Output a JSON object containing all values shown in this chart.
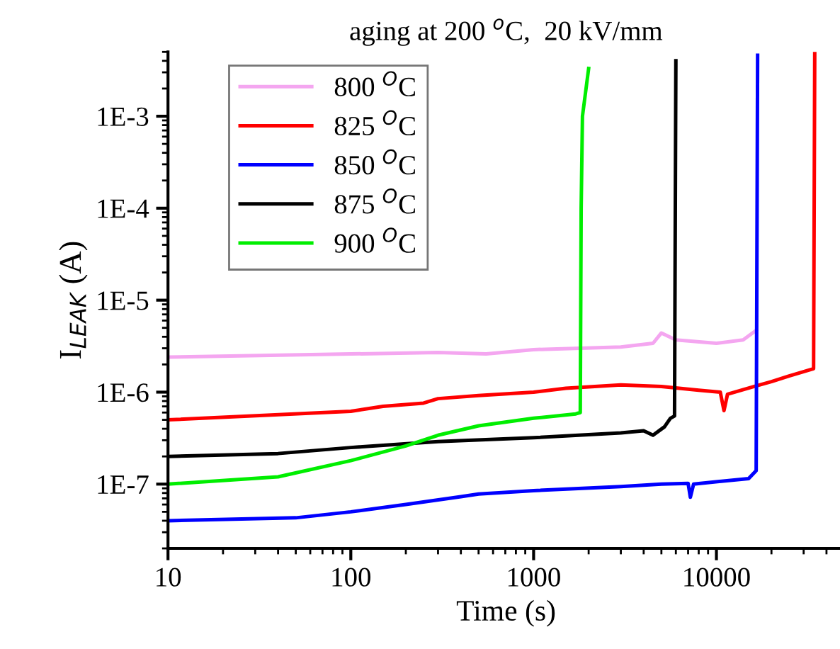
{
  "chart_data": {
    "type": "line",
    "title": "aging at 200 $^{o}$C,  20 kV/mm",
    "xlabel": "Time (s)",
    "ylabel": "I$_{LEAK}$ (A)",
    "log": "xy",
    "xlim": [
      10,
      50000
    ],
    "ylim": [
      2e-08,
      0.005
    ],
    "xticks": [
      10,
      100,
      1000,
      10000
    ],
    "yticks": [
      {
        "value": 1e-07,
        "label": "1E-7"
      },
      {
        "value": 1e-06,
        "label": "1E-6"
      },
      {
        "value": 1e-05,
        "label": "1E-5"
      },
      {
        "value": 0.0001,
        "label": "1E-4"
      },
      {
        "value": 0.001,
        "label": "1E-3"
      }
    ],
    "legend": "top left",
    "grid": false,
    "marker": "none",
    "line_style": "solid",
    "series": [
      {
        "name": "800 $^{O}$C",
        "color": "#f4a6f0",
        "x": [
          10,
          100,
          300,
          550,
          1000,
          3000,
          4500,
          5000,
          6000,
          10000,
          14000,
          16500
        ],
        "values": [
          2.4e-06,
          2.6e-06,
          2.7e-06,
          2.6e-06,
          2.9e-06,
          3.1e-06,
          3.4e-06,
          4.4e-06,
          3.7e-06,
          3.4e-06,
          3.7e-06,
          4.7e-06
        ]
      },
      {
        "name": "825 $^{O}$C",
        "color": "#ff0000",
        "x": [
          10,
          100,
          150,
          250,
          300,
          500,
          1000,
          1500,
          3000,
          5000,
          8000,
          10500,
          11000,
          11500,
          16000,
          20000,
          25000,
          34000,
          34500
        ],
        "values": [
          5e-07,
          6.2e-07,
          7e-07,
          7.6e-07,
          8.5e-07,
          9.2e-07,
          1e-06,
          1.1e-06,
          1.2e-06,
          1.15e-06,
          1.05e-06,
          1e-06,
          6.3e-07,
          9.5e-07,
          1.15e-06,
          1.3e-06,
          1.5e-06,
          1.8e-06,
          0.005
        ]
      },
      {
        "name": "850 $^{O}$C",
        "color": "#0000ff",
        "x": [
          10,
          50,
          100,
          200,
          400,
          500,
          1000,
          3000,
          5000,
          7000,
          7200,
          7500,
          15000,
          16500,
          16800
        ],
        "values": [
          4e-08,
          4.3e-08,
          5e-08,
          6e-08,
          7.3e-08,
          7.8e-08,
          8.5e-08,
          9.4e-08,
          1e-07,
          1.02e-07,
          7.2e-08,
          1e-07,
          1.15e-07,
          1.4e-07,
          0.0046
        ]
      },
      {
        "name": "875 $^{O}$C",
        "color": "#000000",
        "x": [
          10,
          40,
          100,
          300,
          1000,
          3000,
          4000,
          4500,
          5200,
          5600,
          5900,
          6000
        ],
        "values": [
          2e-07,
          2.15e-07,
          2.5e-07,
          2.9e-07,
          3.2e-07,
          3.6e-07,
          3.8e-07,
          3.4e-07,
          4.2e-07,
          5.2e-07,
          5.5e-07,
          0.004
        ]
      },
      {
        "name": "900 $^{O}$C",
        "color": "#00ee00",
        "x": [
          10,
          40,
          100,
          200,
          300,
          500,
          1000,
          1700,
          1800,
          1820,
          1850,
          2000
        ],
        "values": [
          1e-07,
          1.2e-07,
          1.8e-07,
          2.6e-07,
          3.4e-07,
          4.3e-07,
          5.2e-07,
          5.8e-07,
          6e-07,
          0.0001,
          0.001,
          0.0033
        ]
      }
    ]
  }
}
